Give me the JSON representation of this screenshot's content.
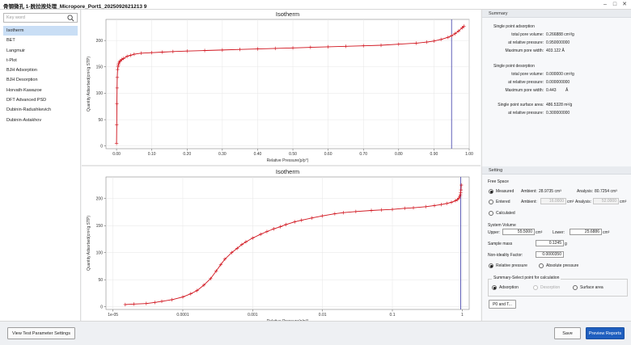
{
  "window": {
    "title": "骨钢微孔 1-脱拉按处理_Micropore_Port1_2025092621213 9"
  },
  "sidebar": {
    "search_placeholder": "Key word",
    "items": [
      {
        "label": "Isotherm",
        "active": true
      },
      {
        "label": "BET",
        "active": false
      },
      {
        "label": "Langmuir",
        "active": false
      },
      {
        "label": "t-Plot",
        "active": false
      },
      {
        "label": "BJH Adsorption",
        "active": false
      },
      {
        "label": "BJH Desorption",
        "active": false
      },
      {
        "label": "Horvath-Kawazoe",
        "active": false
      },
      {
        "label": "DFT Advanced PSD",
        "active": false
      },
      {
        "label": "Dubinin-Radushkevich",
        "active": false
      },
      {
        "label": "Dubinin-Astakhov",
        "active": false
      }
    ]
  },
  "chart_data": [
    {
      "type": "line",
      "title": "Isotherm",
      "xlabel": "Relative Pressure(p/p°)",
      "ylabel": "Quantity Adsorbed(cm³/g STP)",
      "xlim": [
        -0.03,
        1.0
      ],
      "ylim": [
        -5,
        240
      ],
      "xticks": [
        "0.00",
        "0.10",
        "0.20",
        "0.30",
        "0.40",
        "0.50",
        "0.60",
        "0.70",
        "0.80",
        "0.90",
        "1.00"
      ],
      "xtick_values": [
        0,
        0.1,
        0.2,
        0.3,
        0.4,
        0.5,
        0.6,
        0.7,
        0.8,
        0.9,
        1.0
      ],
      "yticks": [
        "0",
        "50",
        "100",
        "150",
        "200"
      ],
      "ytick_values": [
        0,
        50,
        100,
        150,
        200
      ],
      "x_scale": "linear",
      "grid": true,
      "marker_line_x": 0.95,
      "series": [
        {
          "color": "#d0101a",
          "x": [
            0.0,
            0.0005,
            0.001,
            0.0015,
            0.002,
            0.003,
            0.004,
            0.005,
            0.006,
            0.008,
            0.01,
            0.015,
            0.02,
            0.03,
            0.04,
            0.05,
            0.07,
            0.1,
            0.13,
            0.16,
            0.2,
            0.25,
            0.3,
            0.35,
            0.4,
            0.45,
            0.5,
            0.55,
            0.6,
            0.65,
            0.7,
            0.75,
            0.8,
            0.85,
            0.88,
            0.9,
            0.92,
            0.94,
            0.95,
            0.96,
            0.97,
            0.98,
            0.985
          ],
          "y": [
            5,
            40,
            80,
            110,
            130,
            145,
            150,
            153,
            156,
            159,
            161,
            164,
            166,
            170,
            172,
            174,
            176,
            177,
            178,
            179,
            180,
            181,
            182,
            183,
            184,
            185,
            186,
            187,
            188,
            189,
            190,
            191,
            193,
            195,
            197,
            199,
            202,
            206,
            209,
            213,
            218,
            224,
            227
          ]
        }
      ]
    },
    {
      "type": "line",
      "title": "Isotherm",
      "xlabel": "Relative Pressure(p/p°)",
      "ylabel": "Quantity Adsorbed(cm³/g STP)",
      "x_scale": "log",
      "xlim_log10": [
        -5.1,
        0.1
      ],
      "ylim": [
        -5,
        240
      ],
      "xticks": [
        "1e-05",
        "0.0001",
        "0.001",
        "0.01",
        "0.1",
        "1"
      ],
      "xtick_values": [
        1e-05,
        0.0001,
        0.001,
        0.01,
        0.1,
        1
      ],
      "yticks": [
        "0",
        "50",
        "100",
        "150",
        "200"
      ],
      "ytick_values": [
        0,
        50,
        100,
        150,
        200
      ],
      "grid": true,
      "marker_line_x": 0.95,
      "series": [
        {
          "color": "#d0101a",
          "x": [
            1.5e-05,
            2e-05,
            3e-05,
            4e-05,
            5e-05,
            7e-05,
            0.0001,
            0.00013,
            0.00016,
            0.0002,
            0.00025,
            0.0003,
            0.00035,
            0.0004,
            0.0005,
            0.0006,
            0.0007,
            0.0008,
            0.001,
            0.0013,
            0.0016,
            0.002,
            0.0025,
            0.003,
            0.004,
            0.005,
            0.007,
            0.01,
            0.015,
            0.02,
            0.03,
            0.05,
            0.07,
            0.1,
            0.15,
            0.2,
            0.3,
            0.4,
            0.5,
            0.6,
            0.7,
            0.8,
            0.85,
            0.9,
            0.92,
            0.94,
            0.95,
            0.96,
            0.97
          ],
          "y": [
            4,
            5,
            6,
            8,
            10,
            13,
            18,
            24,
            30,
            40,
            52,
            66,
            78,
            88,
            100,
            108,
            115,
            120,
            127,
            134,
            139,
            144,
            148,
            152,
            157,
            160,
            164,
            168,
            172,
            174,
            176,
            178,
            179,
            180,
            182,
            183,
            185,
            187,
            189,
            191,
            193,
            196,
            198,
            201,
            204,
            207,
            211,
            216,
            225
          ]
        }
      ]
    }
  ],
  "summary": {
    "header": "Summary",
    "adsorption_title": "Single point adsorption",
    "total_pore_volume_label": "total pore volume:",
    "total_pore_volume_ads": "0.266888 cm³/g",
    "relative_pressure_label": "at relative pressure:",
    "relative_pressure_ads": "0.950000000",
    "max_pore_width_label": "Maximum pore width:",
    "max_pore_width_ads": "403.122 Å",
    "desorption_title": "Single point desorption",
    "total_pore_volume_des": "0.000000 cm³/g",
    "relative_pressure_des": "0.000000000",
    "max_pore_width_des": "0.443",
    "max_pore_width_des_unit": "Å",
    "surface_area_label": "Single point surface area:",
    "surface_area": "486.5328 m²/g",
    "surface_relative_pressure": "0.300000000"
  },
  "setting": {
    "header": "Setting",
    "free_space_label": "Free Space",
    "measured_label": "Measured",
    "ambient_label": "Ambient:",
    "measured_ambient": "28.9735 cm³",
    "analysis_label": "Analysis:",
    "measured_analysis": "80.7254 cm³",
    "entered_label": "Entered",
    "entered_ambient_label": "Ambient:",
    "entered_ambient": "16.0000",
    "entered_ambient_unit": "cm³",
    "entered_analysis_label": "Analysis:",
    "entered_analysis": "52.0000",
    "entered_analysis_unit": "cm³",
    "calculated_label": "Calculated",
    "system_volume_label": "System Volume",
    "upper_label": "Upper:",
    "upper_value": "55.5000",
    "upper_unit": "cm³",
    "lower_label": "Lower:",
    "lower_value": "25.6886",
    "lower_unit": "cm³",
    "sample_mass_label": "Sample mass",
    "sample_mass_value": "0.1245",
    "sample_mass_unit": "g",
    "nonideality_label": "Non-ideality Factor:",
    "nonideality_value": "0.0000350",
    "relative_pressure_option": "Relative pressure",
    "absolute_pressure_option": "Absolute pressure",
    "summary_select_label": "Summary-Select point for calculation",
    "adsorption_option": "Adsorption",
    "desorption_option": "Desorption",
    "surface_area_option": "Surface area",
    "p0_button": "P0 and T..."
  },
  "bottom": {
    "view_params_button": "View Test Parameter Settings",
    "save_button": "Save",
    "preview_button": "Preview Reports"
  },
  "colors": {
    "accent": "#1f5fbf",
    "series": "#d0101a",
    "marker_line": "#3a3aa8",
    "selected_item": "#c9def5"
  }
}
